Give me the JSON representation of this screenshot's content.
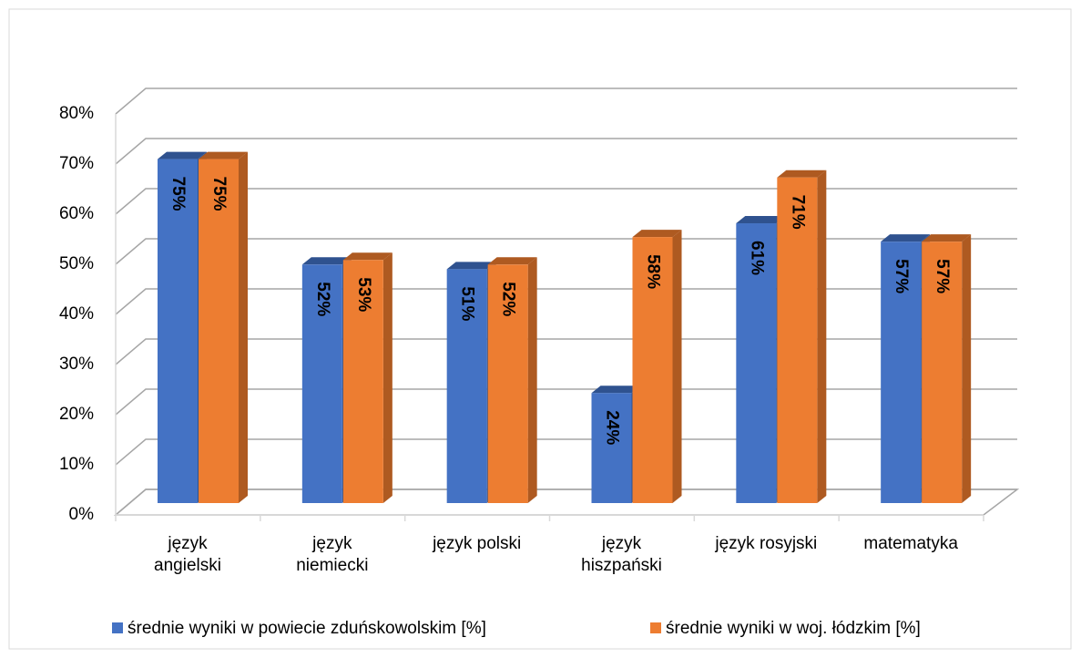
{
  "chart_data": {
    "type": "bar3d",
    "categories": [
      "język\nangielski",
      "język\nniemiecki",
      "język polski",
      "język\nhiszpański",
      "język rosyjski",
      "matematyka"
    ],
    "series": [
      {
        "name": "średnie wyniki w powiecie zduńskowolskim [%]",
        "color": "#4472c4",
        "side": "#2f528f",
        "values": [
          75,
          52,
          51,
          24,
          61,
          57
        ],
        "value_labels": [
          "75%",
          "52%",
          "51%",
          "24%",
          "61%",
          "57%"
        ]
      },
      {
        "name": "średnie wyniki w woj. łódzkim [%]",
        "color": "#ed7d31",
        "side": "#ae5a21",
        "values": [
          75,
          53,
          52,
          58,
          71,
          57
        ],
        "value_labels": [
          "75%",
          "53%",
          "52%",
          "58%",
          "71%",
          "57%"
        ]
      }
    ],
    "ylim": [
      0,
      80
    ],
    "yticks": [
      {
        "value": 0,
        "label": "0%"
      },
      {
        "value": 10,
        "label": "10%"
      },
      {
        "value": 20,
        "label": "20%"
      },
      {
        "value": 30,
        "label": "30%"
      },
      {
        "value": 40,
        "label": "40%"
      },
      {
        "value": 50,
        "label": "50%"
      },
      {
        "value": 60,
        "label": "60%"
      },
      {
        "value": 70,
        "label": "70%"
      },
      {
        "value": 80,
        "label": "80%"
      }
    ],
    "grid": true,
    "legend": "bottom"
  }
}
